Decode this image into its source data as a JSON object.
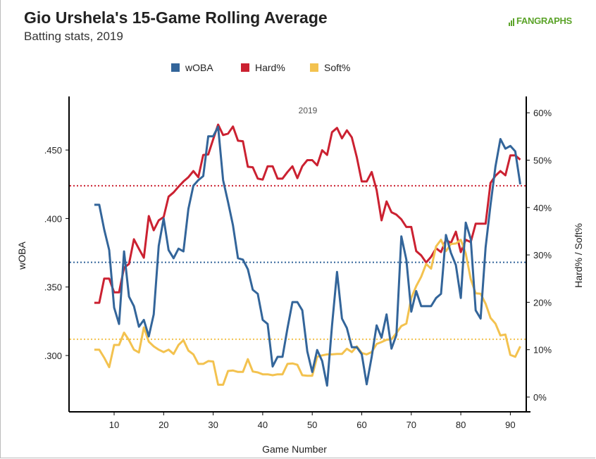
{
  "header": {
    "title": "Gio Urshela's 15-Game Rolling Average",
    "subtitle": "Batting stats, 2019",
    "logo_text": "FANGRAPHS"
  },
  "colors": {
    "woba": "#33659a",
    "hard": "#cb2131",
    "soft": "#f3c24f",
    "logo": "#5ba329"
  },
  "chart_data": {
    "type": "line",
    "title": "Gio Urshela's 15-Game Rolling Average",
    "subtitle": "Batting stats, 2019",
    "annotation": "2019",
    "xlabel": "Game Number",
    "ylabel": "wOBA",
    "y2label": "Hard% / Soft%",
    "xlim": [
      1,
      93
    ],
    "ylim": [
      0.265,
      0.495
    ],
    "y2lim": [
      -3,
      63
    ],
    "xticks": [
      "10",
      "20",
      "30",
      "40",
      "50",
      "60",
      "70",
      "80",
      "90"
    ],
    "yticks": [
      ".300",
      ".350",
      ".400",
      ".450"
    ],
    "y2ticks": [
      "0%",
      "10%",
      "20%",
      "30%",
      "40%",
      "50%",
      "60%"
    ],
    "legend": [
      "wOBA",
      "Hard%",
      "Soft%"
    ],
    "legend_position": "top",
    "x_start": 6,
    "series": [
      {
        "name": "wOBA",
        "axis": "left",
        "average": 0.368,
        "values": [
          0.41,
          0.41,
          0.392,
          0.377,
          0.335,
          0.323,
          0.376,
          0.343,
          0.336,
          0.321,
          0.326,
          0.314,
          0.33,
          0.38,
          0.4,
          0.377,
          0.371,
          0.378,
          0.376,
          0.407,
          0.424,
          0.428,
          0.431,
          0.46,
          0.46,
          0.467,
          0.428,
          0.412,
          0.395,
          0.371,
          0.37,
          0.363,
          0.348,
          0.345,
          0.326,
          0.323,
          0.292,
          0.299,
          0.299,
          0.32,
          0.339,
          0.339,
          0.333,
          0.303,
          0.288,
          0.304,
          0.296,
          0.278,
          0.322,
          0.361,
          0.327,
          0.32,
          0.306,
          0.306,
          0.301,
          0.279,
          0.299,
          0.322,
          0.313,
          0.33,
          0.305,
          0.315,
          0.387,
          0.37,
          0.332,
          0.347,
          0.336,
          0.336,
          0.336,
          0.342,
          0.345,
          0.388,
          0.375,
          0.366,
          0.342,
          0.397,
          0.385,
          0.333,
          0.327,
          0.379,
          0.41,
          0.438,
          0.458,
          0.451,
          0.453,
          0.449,
          0.425
        ]
      },
      {
        "name": "Hard%",
        "axis": "right",
        "average": 44.6,
        "values": [
          19.9,
          19.9,
          25.0,
          25.0,
          22.1,
          22.1,
          27.3,
          28.1,
          33.3,
          31.3,
          29.4,
          38.2,
          35.2,
          37.3,
          38.0,
          42.3,
          43.2,
          44.4,
          45.5,
          46.4,
          47.7,
          46.4,
          51.1,
          51.2,
          54.4,
          57.5,
          55.3,
          55.6,
          57.1,
          54.1,
          54.0,
          48.6,
          48.5,
          46.1,
          45.9,
          48.7,
          48.7,
          46.1,
          46.1,
          47.5,
          48.7,
          46.2,
          48.7,
          50.0,
          50.0,
          48.9,
          52.1,
          51.1,
          55.9,
          56.8,
          54.6,
          56.3,
          54.8,
          50.6,
          45.5,
          45.5,
          47.5,
          43.7,
          37.3,
          41.3,
          39.0,
          38.5,
          37.5,
          35.9,
          35.9,
          30.8,
          29.9,
          28.4,
          29.6,
          31.4,
          30.6,
          33.2,
          32.5,
          34.9,
          30.6,
          33.2,
          32.7,
          36.6,
          36.6,
          36.6,
          45.2,
          46.7,
          47.7,
          46.8,
          51.0,
          51.0,
          50.1
        ]
      },
      {
        "name": "Soft%",
        "axis": "right",
        "average": 12.2,
        "values": [
          10.0,
          10.0,
          8.3,
          6.3,
          11.0,
          11.0,
          13.6,
          12.0,
          10.0,
          9.4,
          14.7,
          11.7,
          10.7,
          10.0,
          9.5,
          10.0,
          9.1,
          11.0,
          12.0,
          9.8,
          9.0,
          7.0,
          7.0,
          7.6,
          7.5,
          2.6,
          2.6,
          5.5,
          5.6,
          5.3,
          5.3,
          8.0,
          5.4,
          5.2,
          4.8,
          4.8,
          4.6,
          4.8,
          4.8,
          7.0,
          7.1,
          6.8,
          4.6,
          4.5,
          4.5,
          8.5,
          8.8,
          9.0,
          9.0,
          9.1,
          9.1,
          10.2,
          9.5,
          10.7,
          9.3,
          9.0,
          9.5,
          11.2,
          11.6,
          12.1,
          12.2,
          13.5,
          15.0,
          15.5,
          20.9,
          23.4,
          25.4,
          28.1,
          27.1,
          31.8,
          33.2,
          30.8,
          32.3,
          32.4,
          33.2,
          30.3,
          24.9,
          21.9,
          21.8,
          19.7,
          16.7,
          15.5,
          13.0,
          13.2,
          8.9,
          8.5,
          10.7
        ]
      }
    ]
  }
}
